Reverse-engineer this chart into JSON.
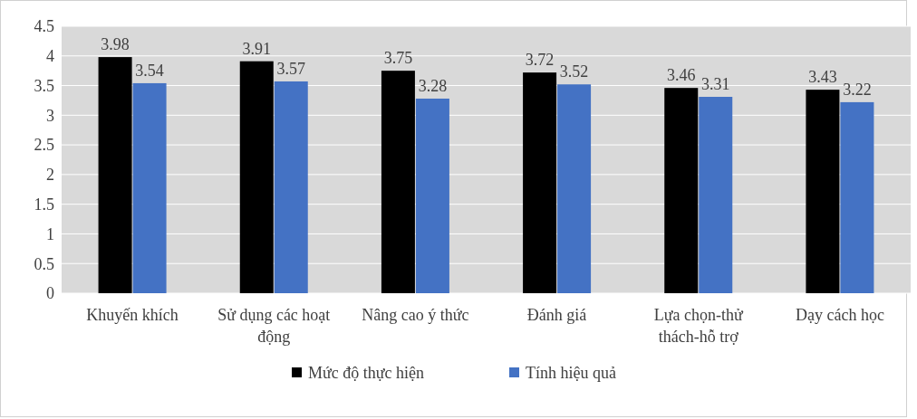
{
  "chart_data": {
    "type": "bar",
    "categories": [
      "Khuyến khích",
      "Sử dụng các hoạt động",
      "Nâng cao ý thức",
      "Đánh giá",
      "Lựa chọn-thử thách-hỗ trợ",
      "Dạy cách học"
    ],
    "series": [
      {
        "name": "Mức độ thực hiện",
        "color": "#000000",
        "values": [
          3.98,
          3.91,
          3.75,
          3.72,
          3.46,
          3.43
        ]
      },
      {
        "name": "Tính hiệu quả",
        "color": "#4472c4",
        "values": [
          3.54,
          3.57,
          3.28,
          3.52,
          3.31,
          3.22
        ]
      }
    ],
    "ylim": [
      0,
      4.5
    ],
    "yticks": [
      0,
      0.5,
      1,
      1.5,
      2,
      2.5,
      3,
      3.5,
      4,
      4.5
    ],
    "grid": "y",
    "legend": "bottom",
    "data_labels": true
  }
}
